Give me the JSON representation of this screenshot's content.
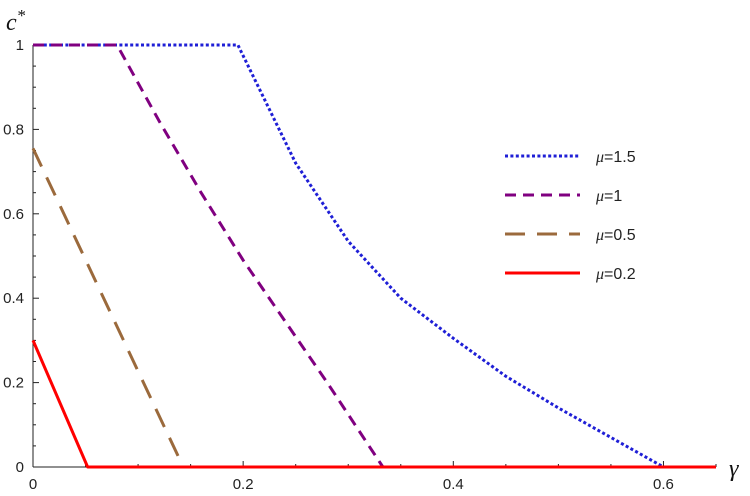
{
  "chart_data": {
    "type": "line",
    "xlabel": "γ",
    "ylabel_main": "c",
    "ylabel_sup": "*",
    "xlim": [
      0,
      0.65
    ],
    "ylim": [
      0,
      1
    ],
    "xticks": [
      0,
      0.2,
      0.4,
      0.6
    ],
    "xtick_labels": [
      "0",
      "0.2",
      "0.4",
      "0.6"
    ],
    "yticks": [
      0,
      0.2,
      0.4,
      0.6,
      0.8,
      1
    ],
    "ytick_labels": [
      "0",
      "0.2",
      "0.4",
      "0.6",
      "0.8",
      "1"
    ],
    "grid": false,
    "legend_position": "right",
    "series": [
      {
        "name": "μ=1.5",
        "mu_value": "1.5",
        "color": "#1f1fd6",
        "dash": "dotted",
        "x": [
          0,
          0.195,
          0.25,
          0.3,
          0.35,
          0.4,
          0.45,
          0.5,
          0.55,
          0.6,
          0.65
        ],
        "y": [
          1,
          1,
          0.72,
          0.535,
          0.4,
          0.305,
          0.215,
          0.14,
          0.07,
          0,
          0
        ]
      },
      {
        "name": "μ=1",
        "mu_value": "1",
        "color": "#800080",
        "dash": "dashed",
        "x": [
          0,
          0.08,
          0.12,
          0.16,
          0.2,
          0.24,
          0.28,
          0.333,
          0.65
        ],
        "y": [
          1,
          1,
          0.82,
          0.65,
          0.49,
          0.345,
          0.2,
          0,
          0
        ]
      },
      {
        "name": "μ=0.5",
        "mu_value": "0.5",
        "color": "#9b6a3c",
        "dash": "longdash",
        "x": [
          0,
          0.143,
          0.65
        ],
        "y": [
          0.755,
          0,
          0
        ]
      },
      {
        "name": "μ=0.2",
        "mu_value": "0.2",
        "color": "#ff0000",
        "dash": "solid",
        "x": [
          0,
          0.052,
          0.65
        ],
        "y": [
          0.3,
          0,
          0
        ]
      }
    ]
  }
}
